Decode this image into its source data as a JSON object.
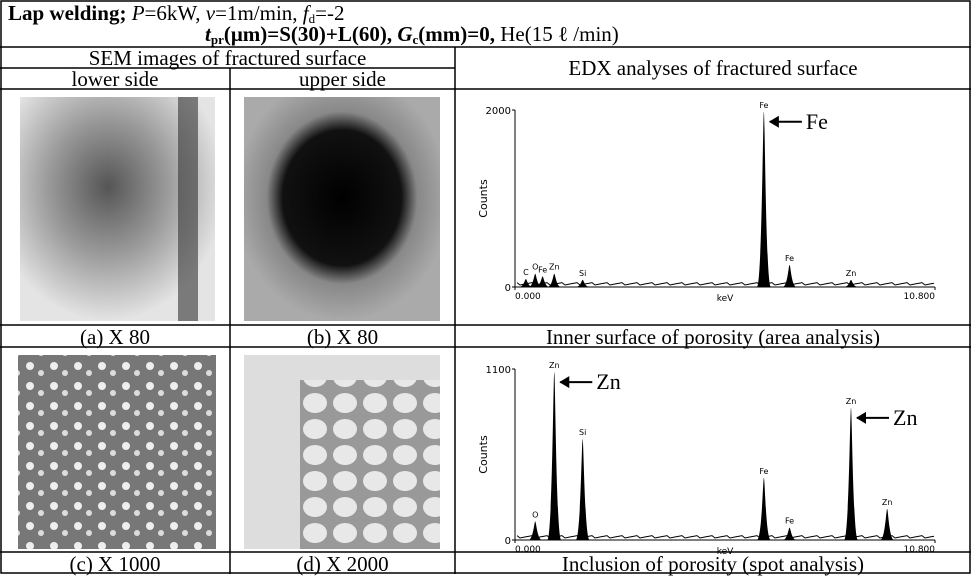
{
  "header": {
    "line1": [
      "Lap welding;",
      "P",
      "=6kW,",
      "v",
      "=1m/min,",
      "f",
      "d",
      "=-2"
    ],
    "line2": [
      "t",
      "pr",
      "(μm)=S(30)+L(60),",
      "G",
      "c",
      "(mm)=0,",
      "He(15 ℓ /min)"
    ]
  },
  "table": {
    "sem_header": "SEM images of fractured surface",
    "lower_side": "lower side",
    "upper_side": "upper side",
    "edx_header": "EDX analyses of fractured surface",
    "captions": [
      "(a) X 80",
      "(b) X 80",
      "Inner surface of porosity (area analysis)",
      "(c) X 1000",
      "(d) X 2000",
      "Inclusion of porosity (spot analysis)"
    ]
  },
  "spectra": [
    {
      "ylabel": "Counts",
      "xlabel": "keV",
      "ylim": [
        0,
        2000
      ],
      "yticks": [
        0,
        2000
      ],
      "xlim": [
        0,
        10.8
      ],
      "xticks": [
        {
          "value": 0,
          "label": "0.000"
        },
        {
          "value": 10.8,
          "label": "10.800"
        }
      ],
      "peaks": [
        {
          "label": "C",
          "x": 0.28,
          "y": 90
        },
        {
          "label": "O",
          "x": 0.52,
          "y": 150
        },
        {
          "label": "Fe",
          "x": 0.71,
          "y": 120
        },
        {
          "label": "Zn",
          "x": 1.01,
          "y": 150
        },
        {
          "label": "Si",
          "x": 1.74,
          "y": 80
        },
        {
          "label": "Fe",
          "x": 6.4,
          "y": 1980,
          "annotation": "Fe"
        },
        {
          "label": "Fe",
          "x": 7.06,
          "y": 250
        },
        {
          "label": "Zn",
          "x": 8.64,
          "y": 80
        }
      ]
    },
    {
      "ylabel": "Counts",
      "xlabel": "keV",
      "ylim": [
        0,
        1100
      ],
      "yticks": [
        0,
        1100
      ],
      "xlim": [
        0,
        10.8
      ],
      "xticks": [
        {
          "value": 0,
          "label": "0.000"
        },
        {
          "value": 10.8,
          "label": "10.800"
        }
      ],
      "peaks": [
        {
          "label": "O",
          "x": 0.52,
          "y": 120
        },
        {
          "label": "Zn",
          "x": 1.01,
          "y": 1080,
          "annotation": "Zn"
        },
        {
          "label": "Si",
          "x": 1.74,
          "y": 650
        },
        {
          "label": "Fe",
          "x": 6.4,
          "y": 400
        },
        {
          "label": "Fe",
          "x": 7.06,
          "y": 80
        },
        {
          "label": "Zn",
          "x": 8.64,
          "y": 850,
          "annotation": "Zn"
        },
        {
          "label": "Zn",
          "x": 9.57,
          "y": 200
        }
      ]
    }
  ]
}
